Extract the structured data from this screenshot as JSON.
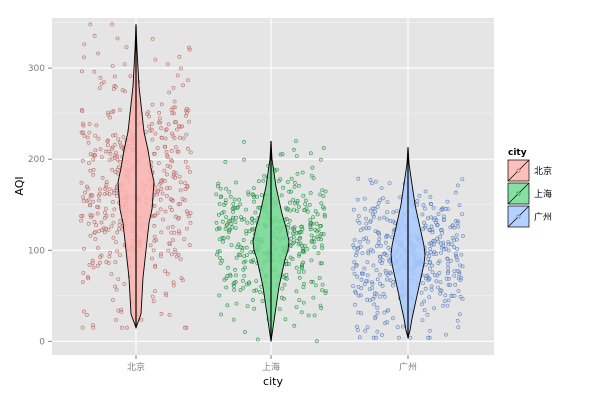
{
  "chart_data": {
    "type": "violin",
    "xlabel": "city",
    "ylabel": "AQI",
    "categories": [
      "北京",
      "上海",
      "广州"
    ],
    "ylim": [
      -15,
      355
    ],
    "yticks": [
      0,
      100,
      200,
      300
    ],
    "grid": true,
    "overlay": "jittered points",
    "legend": {
      "title": "city",
      "placement": "right",
      "entries": [
        "北京",
        "上海",
        "广州"
      ]
    },
    "series": [
      {
        "category": "北京",
        "color": "#F8766D",
        "min": 15,
        "max": 348,
        "median": 160,
        "point_count": 500,
        "point_range": [
          15,
          348
        ]
      },
      {
        "category": "上海",
        "color": "#00BA38",
        "min": 0,
        "max": 220,
        "median": 110,
        "point_count": 420,
        "point_range": [
          0,
          220
        ]
      },
      {
        "category": "广州",
        "color": "#619CFF",
        "min": 4,
        "max": 213,
        "median": 88,
        "point_count": 420,
        "point_range": [
          4,
          213
        ]
      }
    ]
  }
}
